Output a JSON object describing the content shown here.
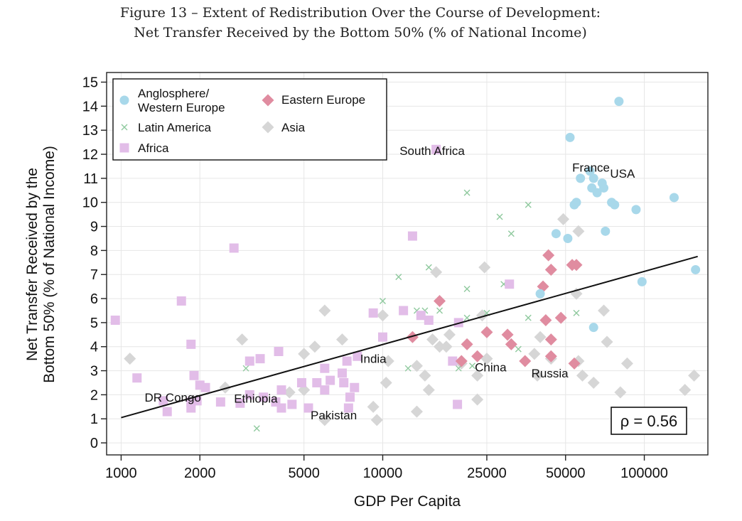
{
  "figure": {
    "title_line1": "Figure 13 – Extent of Redistribution Over the Course of Development:",
    "title_line2": "Net Transfer Received by the Bottom 50% (% of National Income)"
  },
  "chart_data": {
    "type": "scatter",
    "xscale": "log",
    "xlabel": "GDP Per Capita",
    "ylabel_line1": "Net Transfer Received by the",
    "ylabel_line2": "Bottom 50% (% of National Income)",
    "xlim": [
      880,
      175000
    ],
    "ylim": [
      -0.5,
      15.4
    ],
    "xticks": [
      1000,
      2000,
      5000,
      10000,
      25000,
      50000,
      100000
    ],
    "xtick_labels": [
      "1000",
      "2000",
      "5000",
      "10000",
      "25000",
      "50000",
      "100000"
    ],
    "yticks": [
      0,
      1,
      2,
      3,
      4,
      5,
      6,
      7,
      8,
      9,
      10,
      11,
      12,
      13,
      14,
      15
    ],
    "correlation_label": "ρ = 0.56",
    "fit_line": {
      "x": [
        1000,
        160000
      ],
      "y": [
        1.05,
        7.75
      ]
    },
    "colors": {
      "anglosphere": "#a8d8ea",
      "latam": "#8fc99e",
      "africa": "#e2bde8",
      "eastern": "#e08ca0",
      "asia": "#d6d6d6"
    },
    "legend": [
      {
        "key": "anglosphere",
        "label_line1": "Anglosphere/",
        "label_line2": "Western Europe",
        "shape": "circle"
      },
      {
        "key": "eastern",
        "label_line1": "Eastern Europe",
        "label_line2": "",
        "shape": "diamond"
      },
      {
        "key": "latam",
        "label_line1": "Latin America",
        "label_line2": "",
        "shape": "x"
      },
      {
        "key": "asia",
        "label_line1": "Asia",
        "label_line2": "",
        "shape": "diamond"
      },
      {
        "key": "africa",
        "label_line1": "Africa",
        "label_line2": "",
        "shape": "square"
      }
    ],
    "annotations": [
      {
        "text": "South Africa",
        "x": 11600,
        "y": 12.15
      },
      {
        "text": "France",
        "x": 53000,
        "y": 11.45
      },
      {
        "text": "USA",
        "x": 74000,
        "y": 11.2
      },
      {
        "text": "India",
        "x": 8200,
        "y": 3.5
      },
      {
        "text": "China",
        "x": 22500,
        "y": 3.15
      },
      {
        "text": "Russia",
        "x": 37000,
        "y": 2.9
      },
      {
        "text": "DR Congo",
        "x": 1230,
        "y": 1.9
      },
      {
        "text": "Ethiopia",
        "x": 2700,
        "y": 1.85
      },
      {
        "text": "Pakistan",
        "x": 5300,
        "y": 1.15
      }
    ],
    "series": [
      {
        "name": "Anglosphere/Western Europe",
        "key": "anglosphere",
        "shape": "circle",
        "points": [
          [
            80000,
            14.2
          ],
          [
            52000,
            12.7
          ],
          [
            62000,
            11.3
          ],
          [
            57000,
            11.0
          ],
          [
            64000,
            11.0
          ],
          [
            69000,
            10.8
          ],
          [
            63000,
            10.6
          ],
          [
            70000,
            10.6
          ],
          [
            66000,
            10.4
          ],
          [
            55000,
            10.0
          ],
          [
            54000,
            9.9
          ],
          [
            75000,
            10.0
          ],
          [
            77000,
            9.9
          ],
          [
            93000,
            9.7
          ],
          [
            130000,
            10.2
          ],
          [
            71000,
            8.8
          ],
          [
            46000,
            8.7
          ],
          [
            51000,
            8.5
          ],
          [
            157000,
            7.2
          ],
          [
            98000,
            6.7
          ],
          [
            40000,
            6.2
          ],
          [
            64000,
            4.8
          ]
        ]
      },
      {
        "name": "Eastern Europe",
        "key": "eastern",
        "shape": "diamond",
        "points": [
          [
            43000,
            7.8
          ],
          [
            53000,
            7.4
          ],
          [
            55000,
            7.4
          ],
          [
            44000,
            7.2
          ],
          [
            41000,
            6.5
          ],
          [
            16500,
            5.9
          ],
          [
            42000,
            5.1
          ],
          [
            48000,
            5.2
          ],
          [
            21000,
            4.1
          ],
          [
            25000,
            4.6
          ],
          [
            30000,
            4.5
          ],
          [
            31000,
            4.1
          ],
          [
            44000,
            4.3
          ],
          [
            13000,
            4.4
          ],
          [
            35000,
            3.4
          ],
          [
            44000,
            3.6
          ],
          [
            20000,
            3.4
          ],
          [
            23000,
            3.6
          ],
          [
            54000,
            3.3
          ]
        ]
      },
      {
        "name": "Latin America",
        "key": "latam",
        "shape": "x",
        "points": [
          [
            21000,
            10.4
          ],
          [
            36000,
            9.9
          ],
          [
            28000,
            9.4
          ],
          [
            31000,
            8.7
          ],
          [
            15000,
            7.3
          ],
          [
            11500,
            6.9
          ],
          [
            21000,
            6.4
          ],
          [
            29000,
            6.6
          ],
          [
            10000,
            5.9
          ],
          [
            13500,
            5.5
          ],
          [
            14500,
            5.5
          ],
          [
            16500,
            5.5
          ],
          [
            21000,
            5.2
          ],
          [
            25000,
            5.4
          ],
          [
            36000,
            5.2
          ],
          [
            55000,
            5.4
          ],
          [
            33000,
            3.9
          ],
          [
            22000,
            3.2
          ],
          [
            19500,
            3.1
          ],
          [
            12500,
            3.1
          ],
          [
            3000,
            3.1
          ],
          [
            3300,
            0.6
          ]
        ]
      },
      {
        "name": "Africa",
        "key": "africa",
        "shape": "square",
        "points": [
          [
            16000,
            12.2
          ],
          [
            2700,
            8.1
          ],
          [
            13000,
            8.6
          ],
          [
            1700,
            5.9
          ],
          [
            950,
            5.1
          ],
          [
            9200,
            5.4
          ],
          [
            12000,
            5.5
          ],
          [
            15000,
            5.1
          ],
          [
            14000,
            5.3
          ],
          [
            19500,
            5.0
          ],
          [
            30500,
            6.6
          ],
          [
            1850,
            4.1
          ],
          [
            10000,
            4.4
          ],
          [
            4000,
            3.8
          ],
          [
            3100,
            3.4
          ],
          [
            3400,
            3.5
          ],
          [
            1900,
            2.8
          ],
          [
            1150,
            2.7
          ],
          [
            6000,
            3.1
          ],
          [
            7000,
            2.9
          ],
          [
            7300,
            3.4
          ],
          [
            8000,
            3.6
          ],
          [
            6300,
            2.6
          ],
          [
            4900,
            2.5
          ],
          [
            5600,
            2.5
          ],
          [
            7100,
            2.5
          ],
          [
            2000,
            2.4
          ],
          [
            2100,
            2.3
          ],
          [
            6000,
            2.2
          ],
          [
            7800,
            2.3
          ],
          [
            4100,
            2.2
          ],
          [
            3100,
            2.0
          ],
          [
            3500,
            1.9
          ],
          [
            7500,
            1.9
          ],
          [
            1450,
            1.75
          ],
          [
            1850,
            1.7
          ],
          [
            1950,
            1.75
          ],
          [
            2400,
            1.7
          ],
          [
            2850,
            1.65
          ],
          [
            3900,
            1.7
          ],
          [
            4100,
            1.45
          ],
          [
            4500,
            1.6
          ],
          [
            5200,
            1.45
          ],
          [
            7400,
            1.45
          ],
          [
            18500,
            3.4
          ],
          [
            19300,
            1.6
          ],
          [
            1850,
            1.45
          ],
          [
            1500,
            1.3
          ]
        ]
      },
      {
        "name": "Asia",
        "key": "asia",
        "shape": "diamond",
        "points": [
          [
            49000,
            9.3
          ],
          [
            56000,
            8.8
          ],
          [
            24500,
            7.3
          ],
          [
            16000,
            7.1
          ],
          [
            55000,
            6.2
          ],
          [
            10000,
            5.3
          ],
          [
            6000,
            5.5
          ],
          [
            24000,
            5.3
          ],
          [
            70000,
            5.5
          ],
          [
            2900,
            4.3
          ],
          [
            7000,
            4.3
          ],
          [
            15500,
            4.3
          ],
          [
            18000,
            4.5
          ],
          [
            5500,
            4.0
          ],
          [
            5000,
            3.7
          ],
          [
            16500,
            4.0
          ],
          [
            17500,
            4.0
          ],
          [
            38000,
            3.7
          ],
          [
            40000,
            4.4
          ],
          [
            44000,
            3.5
          ],
          [
            72000,
            4.2
          ],
          [
            1080,
            3.5
          ],
          [
            13500,
            3.2
          ],
          [
            14500,
            2.8
          ],
          [
            10500,
            3.4
          ],
          [
            20000,
            3.3
          ],
          [
            25000,
            3.5
          ],
          [
            56000,
            3.4
          ],
          [
            86000,
            3.3
          ],
          [
            23000,
            2.8
          ],
          [
            39000,
            2.8
          ],
          [
            58000,
            2.8
          ],
          [
            155000,
            2.8
          ],
          [
            10300,
            2.5
          ],
          [
            15000,
            2.2
          ],
          [
            23000,
            1.8
          ],
          [
            64000,
            2.5
          ],
          [
            81000,
            2.1
          ],
          [
            143000,
            2.2
          ],
          [
            4400,
            2.1
          ],
          [
            5000,
            2.2
          ],
          [
            9200,
            1.5
          ],
          [
            13500,
            1.3
          ],
          [
            6000,
            0.95
          ],
          [
            9500,
            0.95
          ],
          [
            2500,
            2.3
          ]
        ]
      }
    ]
  }
}
